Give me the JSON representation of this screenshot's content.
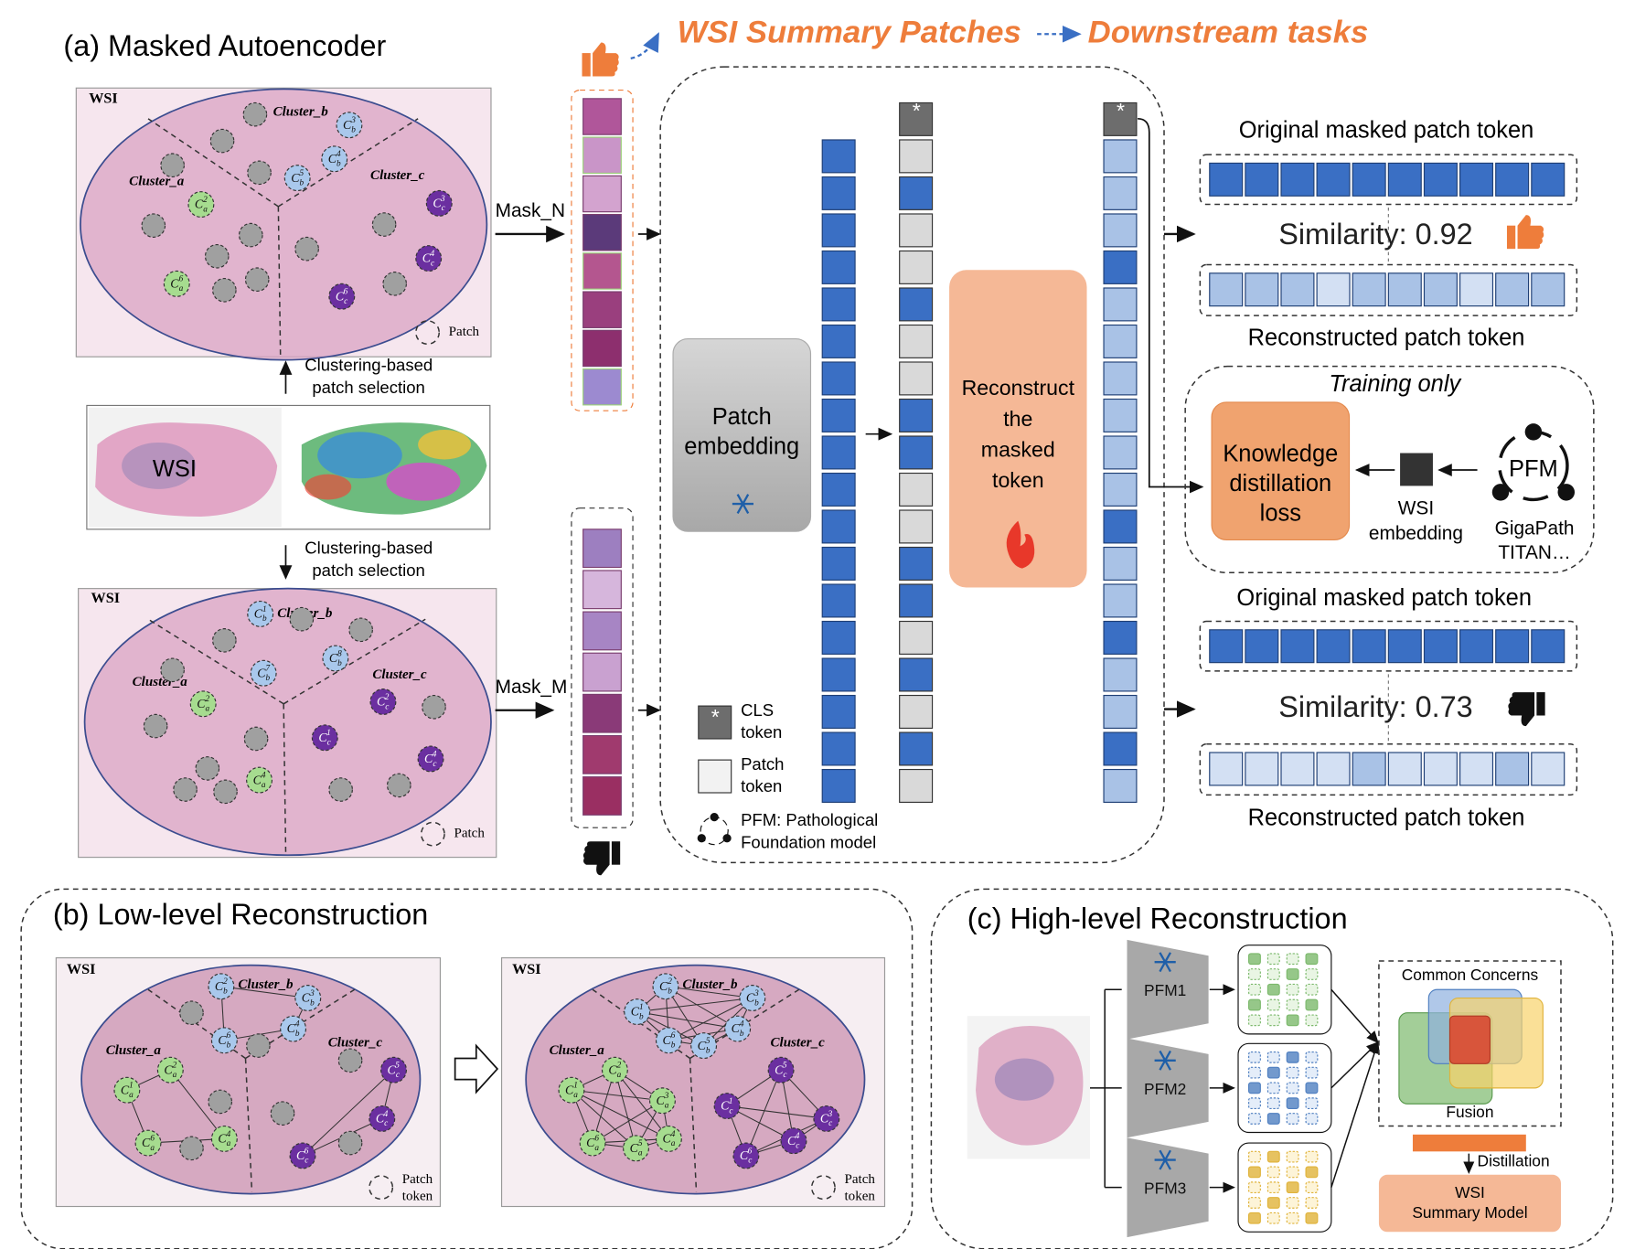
{
  "header": {
    "summary": "WSI Summary Patches",
    "downstream": "Downstream tasks"
  },
  "panel_a": {
    "title": "(a)  Masked Autoencoder",
    "wsi": "WSI",
    "clusters": [
      "Cluster_a",
      "Cluster_b",
      "Cluster_c"
    ],
    "patch": "Patch",
    "symbol": "C",
    "top_nodes": [
      {
        "sub": "b",
        "sup": "3"
      },
      {
        "sub": "b",
        "sup": "4"
      },
      {
        "sub": "b",
        "sup": "5"
      },
      {
        "sub": "a",
        "sup": "2"
      },
      {
        "sub": "c",
        "sup": "3"
      },
      {
        "sub": "c",
        "sup": "4"
      },
      {
        "sub": "a",
        "sup": "6"
      },
      {
        "sub": "c",
        "sup": "6"
      }
    ],
    "bottom_nodes": [
      {
        "sub": "b",
        "sup": "1"
      },
      {
        "sub": "b",
        "sup": "7"
      },
      {
        "sub": "b",
        "sup": "8"
      },
      {
        "sub": "a",
        "sup": "2"
      },
      {
        "sub": "c",
        "sup": "2"
      },
      {
        "sub": "c",
        "sup": "1"
      },
      {
        "sub": "c",
        "sup": "4"
      },
      {
        "sub": "a",
        "sup": "4"
      }
    ],
    "selection": [
      "Clustering-based",
      "patch selection"
    ],
    "thumbnail": "WSI",
    "mask_n": "Mask_N",
    "mask_m": "Mask_M"
  },
  "model": {
    "cls_star": "*",
    "patch_embedding": [
      "Patch",
      "embedding"
    ],
    "reconstruct": [
      "Reconstruct",
      "the",
      "masked",
      "token"
    ],
    "original": "Original masked patch token",
    "reconstructed": "Reconstructed patch token",
    "similarity_high": "Similarity: 0.92",
    "similarity_low": "Similarity: 0.73",
    "training_only": "Training only",
    "kd_loss": [
      "Knowledge",
      "distillation",
      "loss"
    ],
    "wsi_embedding": [
      "WSI",
      "embedding"
    ],
    "pfm": "PFM",
    "pfm_examples": [
      "GigaPath",
      "TITAN…"
    ],
    "legend": {
      "cls": [
        "CLS",
        "token"
      ],
      "patch": [
        "Patch",
        "token"
      ],
      "pfm": [
        "PFM: Pathological",
        "Foundation model"
      ]
    }
  },
  "panel_b": {
    "title": "(b)  Low-level Reconstruction",
    "patch_token": [
      "Patch",
      "token"
    ],
    "left_nodes": [
      {
        "sub": "b",
        "sup": "2"
      },
      {
        "sub": "b",
        "sup": "3"
      },
      {
        "sub": "b",
        "sup": "4"
      },
      {
        "sub": "b",
        "sup": "6"
      },
      {
        "sub": "a",
        "sup": "2"
      },
      {
        "sub": "a",
        "sup": "1"
      },
      {
        "sub": "a",
        "sup": "6"
      },
      {
        "sub": "a",
        "sup": "4"
      },
      {
        "sub": "c",
        "sup": "5"
      },
      {
        "sub": "c",
        "sup": "4"
      },
      {
        "sub": "c",
        "sup": "6"
      }
    ],
    "right_nodes": [
      {
        "sub": "b",
        "sup": "2"
      },
      {
        "sub": "b",
        "sup": "1"
      },
      {
        "sub": "b",
        "sup": "3"
      },
      {
        "sub": "b",
        "sup": "4"
      },
      {
        "sub": "b",
        "sup": "6"
      },
      {
        "sub": "b",
        "sup": "5"
      },
      {
        "sub": "a",
        "sup": "1"
      },
      {
        "sub": "a",
        "sup": "2"
      },
      {
        "sub": "a",
        "sup": "3"
      },
      {
        "sub": "a",
        "sup": "6"
      },
      {
        "sub": "a",
        "sup": "5"
      },
      {
        "sub": "a",
        "sup": "4"
      },
      {
        "sub": "c",
        "sup": "1"
      },
      {
        "sub": "c",
        "sup": "5"
      },
      {
        "sub": "c",
        "sup": "3"
      },
      {
        "sub": "c",
        "sup": "6"
      },
      {
        "sub": "c",
        "sup": "4"
      }
    ]
  },
  "panel_c": {
    "title": "(c)  High-level Reconstruction",
    "pfms": [
      "PFM1",
      "PFM2",
      "PFM3"
    ],
    "common": "Common Concerns",
    "fusion": "Fusion",
    "distillation": "Distillation",
    "summary_model": [
      "WSI",
      "Summary Model"
    ]
  }
}
